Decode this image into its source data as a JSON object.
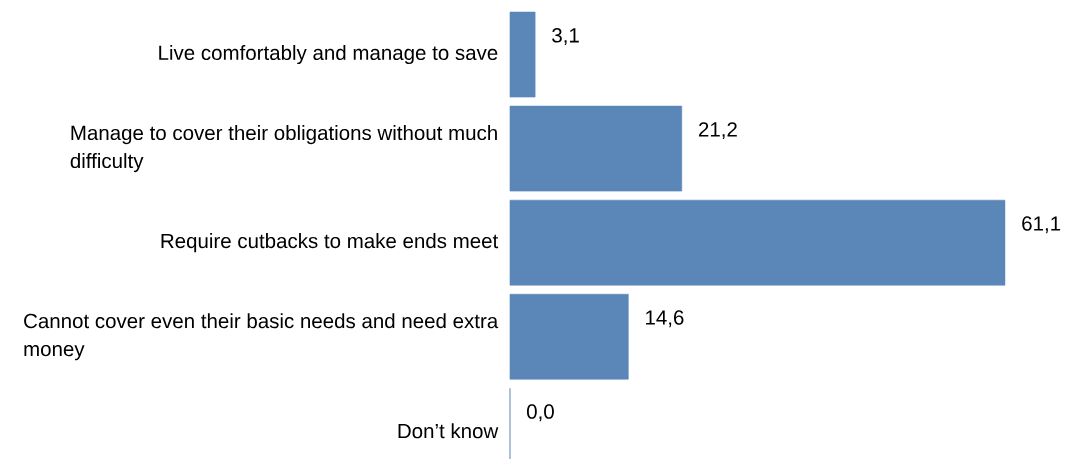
{
  "chart_data": {
    "type": "bar",
    "orientation": "horizontal",
    "categories": [
      "Live comfortably and manage to save",
      "Manage to cover their obligations without much difficulty",
      "Require cutbacks to make ends meet",
      "Cannot cover even their basic needs and need extra money",
      "Don’t know"
    ],
    "values": [
      3.1,
      21.2,
      61.1,
      14.6,
      0.0
    ],
    "value_labels": [
      "3,1",
      "21,2",
      "61,1",
      "14,6",
      "0,0"
    ],
    "color": "#5b86b8"
  }
}
